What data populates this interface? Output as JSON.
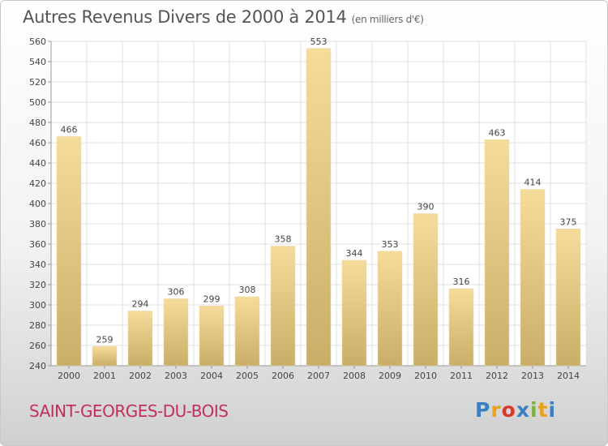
{
  "title": {
    "main": "Autres Revenus Divers de 2000 à 2014",
    "unit": "(en milliers d'€)"
  },
  "commune": "SAINT-GEORGES-DU-BOIS",
  "logo": {
    "letters": [
      "P",
      "r",
      "o",
      "x",
      "i",
      "t",
      "i"
    ]
  },
  "colors": {
    "bar_light": "#f6dc9a",
    "bar_dark": "#c9ad68",
    "grid": "#e0e0e0",
    "axis_text": "#444444",
    "commune_text": "#c0305b"
  },
  "chart_data": {
    "type": "bar",
    "title": "Autres Revenus Divers de 2000 à 2014",
    "ylabel": "",
    "xlabel": "",
    "categories": [
      "2000",
      "2001",
      "2002",
      "2003",
      "2004",
      "2005",
      "2006",
      "2007",
      "2008",
      "2009",
      "2010",
      "2011",
      "2012",
      "2013",
      "2014"
    ],
    "values": [
      466,
      259,
      294,
      306,
      299,
      308,
      358,
      553,
      344,
      353,
      390,
      316,
      463,
      414,
      375
    ],
    "ylim": [
      240,
      560
    ],
    "ytick_step": 20,
    "grid": true,
    "data_labels": true
  }
}
